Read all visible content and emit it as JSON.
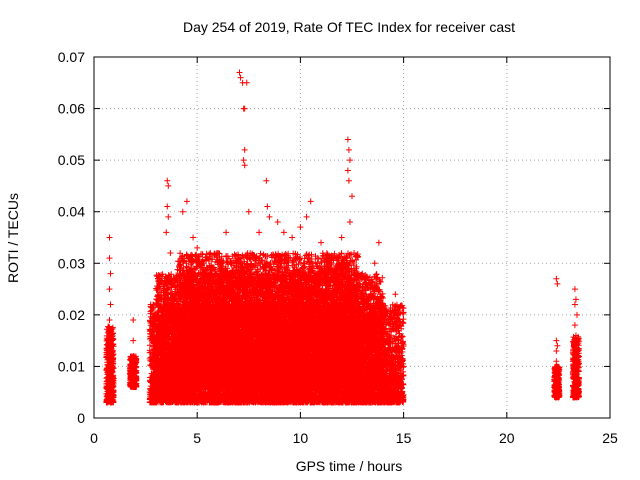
{
  "chart_data": {
    "type": "scatter",
    "title": "Day 254 of 2019, Rate Of TEC Index for receiver cast",
    "xlabel": "GPS time / hours",
    "ylabel": "ROTI / TECUs",
    "xlim": [
      0,
      25
    ],
    "ylim": [
      0,
      0.07
    ],
    "xticks": [
      "0",
      "5",
      "10",
      "15",
      "20",
      "25"
    ],
    "yticks": [
      "0",
      "0.01",
      "0.02",
      "0.03",
      "0.04",
      "0.05",
      "0.06",
      "0.07"
    ],
    "grid": true,
    "marker": "+",
    "series": [
      {
        "name": "ROTI",
        "color": "#ff0000",
        "points": [
          [
            0.75,
            0.035
          ],
          [
            0.75,
            0.031
          ],
          [
            0.8,
            0.028
          ],
          [
            0.75,
            0.025
          ],
          [
            0.8,
            0.022
          ],
          [
            0.75,
            0.019
          ],
          [
            0.8,
            0.016
          ],
          [
            0.75,
            0.013
          ],
          [
            0.8,
            0.011
          ],
          [
            0.75,
            0.009
          ],
          [
            0.8,
            0.007
          ],
          [
            0.75,
            0.005
          ],
          [
            0.7,
            0.004
          ],
          [
            0.85,
            0.012
          ],
          [
            1.9,
            0.019
          ],
          [
            1.9,
            0.015
          ],
          [
            1.85,
            0.011
          ],
          [
            1.9,
            0.009
          ],
          [
            1.9,
            0.008
          ],
          [
            1.95,
            0.006
          ],
          [
            2.75,
            0.022
          ],
          [
            2.85,
            0.018
          ],
          [
            2.9,
            0.012
          ],
          [
            3.0,
            0.008
          ],
          [
            3.1,
            0.004
          ],
          [
            2.8,
            0.003
          ],
          [
            3.55,
            0.046
          ],
          [
            3.6,
            0.045
          ],
          [
            3.55,
            0.041
          ],
          [
            3.6,
            0.039
          ],
          [
            3.5,
            0.036
          ],
          [
            3.7,
            0.032
          ],
          [
            4.3,
            0.04
          ],
          [
            4.5,
            0.042
          ],
          [
            4.8,
            0.035
          ],
          [
            5.0,
            0.033
          ],
          [
            5.3,
            0.03
          ],
          [
            5.6,
            0.025
          ],
          [
            6.0,
            0.032
          ],
          [
            6.4,
            0.036
          ],
          [
            6.9,
            0.03
          ],
          [
            7.05,
            0.067
          ],
          [
            7.1,
            0.066
          ],
          [
            7.2,
            0.065
          ],
          [
            7.4,
            0.065
          ],
          [
            7.25,
            0.06
          ],
          [
            7.3,
            0.06
          ],
          [
            7.3,
            0.052
          ],
          [
            7.25,
            0.05
          ],
          [
            7.3,
            0.049
          ],
          [
            7.5,
            0.04
          ],
          [
            8.0,
            0.036
          ],
          [
            8.35,
            0.046
          ],
          [
            8.4,
            0.041
          ],
          [
            8.5,
            0.039
          ],
          [
            8.9,
            0.038
          ],
          [
            9.2,
            0.036
          ],
          [
            9.6,
            0.035
          ],
          [
            10.0,
            0.037
          ],
          [
            10.3,
            0.039
          ],
          [
            10.5,
            0.042
          ],
          [
            11.0,
            0.034
          ],
          [
            11.5,
            0.03
          ],
          [
            12.0,
            0.035
          ],
          [
            12.3,
            0.054
          ],
          [
            12.35,
            0.052
          ],
          [
            12.4,
            0.05
          ],
          [
            12.3,
            0.048
          ],
          [
            12.35,
            0.046
          ],
          [
            12.5,
            0.043
          ],
          [
            12.4,
            0.038
          ],
          [
            12.6,
            0.032
          ],
          [
            13.0,
            0.028
          ],
          [
            13.6,
            0.03
          ],
          [
            13.8,
            0.034
          ],
          [
            13.9,
            0.024
          ],
          [
            14.3,
            0.018
          ],
          [
            14.6,
            0.024
          ],
          [
            14.7,
            0.021
          ],
          [
            14.75,
            0.015
          ],
          [
            14.8,
            0.01
          ],
          [
            14.85,
            0.006
          ],
          [
            14.9,
            0.004
          ],
          [
            13.2,
            0.003
          ],
          [
            12.0,
            0.004
          ],
          [
            10.5,
            0.003
          ],
          [
            9.0,
            0.004
          ],
          [
            7.0,
            0.003
          ],
          [
            5.5,
            0.004
          ],
          [
            4.0,
            0.003
          ],
          [
            22.4,
            0.027
          ],
          [
            22.45,
            0.026
          ],
          [
            22.4,
            0.015
          ],
          [
            22.45,
            0.014
          ],
          [
            22.4,
            0.013
          ],
          [
            22.4,
            0.011
          ],
          [
            22.45,
            0.009
          ],
          [
            22.4,
            0.008
          ],
          [
            22.45,
            0.007
          ],
          [
            22.4,
            0.006
          ],
          [
            22.45,
            0.005
          ],
          [
            22.4,
            0.004
          ],
          [
            23.3,
            0.025
          ],
          [
            23.35,
            0.023
          ],
          [
            23.3,
            0.022
          ],
          [
            23.4,
            0.02
          ],
          [
            23.3,
            0.018
          ],
          [
            23.35,
            0.016
          ],
          [
            23.3,
            0.014
          ],
          [
            23.4,
            0.013
          ],
          [
            23.3,
            0.012
          ],
          [
            23.35,
            0.011
          ],
          [
            23.3,
            0.01
          ],
          [
            23.4,
            0.009
          ],
          [
            23.3,
            0.008
          ],
          [
            23.35,
            0.007
          ],
          [
            23.3,
            0.006
          ],
          [
            23.4,
            0.005
          ],
          [
            23.3,
            0.004
          ]
        ],
        "dense_bands": [
          {
            "x": [
              0.6,
              0.95
            ],
            "ymin": 0.003,
            "ymax": 0.018
          },
          {
            "x": [
              1.75,
              2.05
            ],
            "ymin": 0.006,
            "ymax": 0.012
          },
          {
            "x": [
              2.7,
              15.0
            ],
            "ymin": 0.003,
            "ymax": 0.022
          },
          {
            "x": [
              3.0,
              14.0
            ],
            "ymin": 0.006,
            "ymax": 0.028
          },
          {
            "x": [
              4.0,
              12.8
            ],
            "ymin": 0.008,
            "ymax": 0.032
          },
          {
            "x": [
              22.3,
              22.55
            ],
            "ymin": 0.004,
            "ymax": 0.01
          },
          {
            "x": [
              23.2,
              23.5
            ],
            "ymin": 0.004,
            "ymax": 0.016
          }
        ]
      }
    ]
  }
}
